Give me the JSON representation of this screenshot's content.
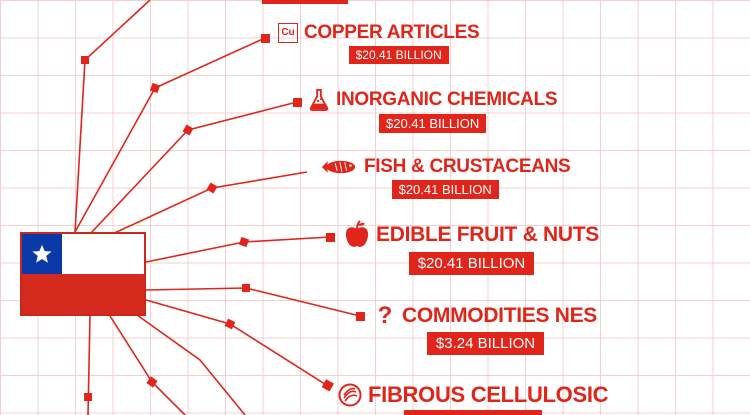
{
  "country_flag": "chile-flag",
  "colors": {
    "accent": "#e0251b",
    "grid": "#f1d0d0",
    "flag_blue": "#0b39a8",
    "flag_red": "#d52b1e"
  },
  "items": [
    {
      "label": "COPPER ARTICLES",
      "value": "$20.41 BILLION",
      "icon": "copper-element-icon",
      "symbol": "Cu"
    },
    {
      "label": "INORGANIC CHEMICALS",
      "value": "$20.41 BILLION",
      "icon": "flask-icon"
    },
    {
      "label": "FISH & CRUSTACEANS",
      "value": "$20.41 BILLION",
      "icon": "fish-icon"
    },
    {
      "label": "EDIBLE FRUIT & NUTS",
      "value": "$20.41 BILLION",
      "icon": "apple-icon"
    },
    {
      "label": "COMMODITIES NES",
      "value": "$3.24 BILLION",
      "icon": "question-mark-icon",
      "symbol": "?"
    },
    {
      "label": "FIBROUS CELLULOSIC",
      "value": "",
      "icon": "fiber-icon"
    }
  ]
}
